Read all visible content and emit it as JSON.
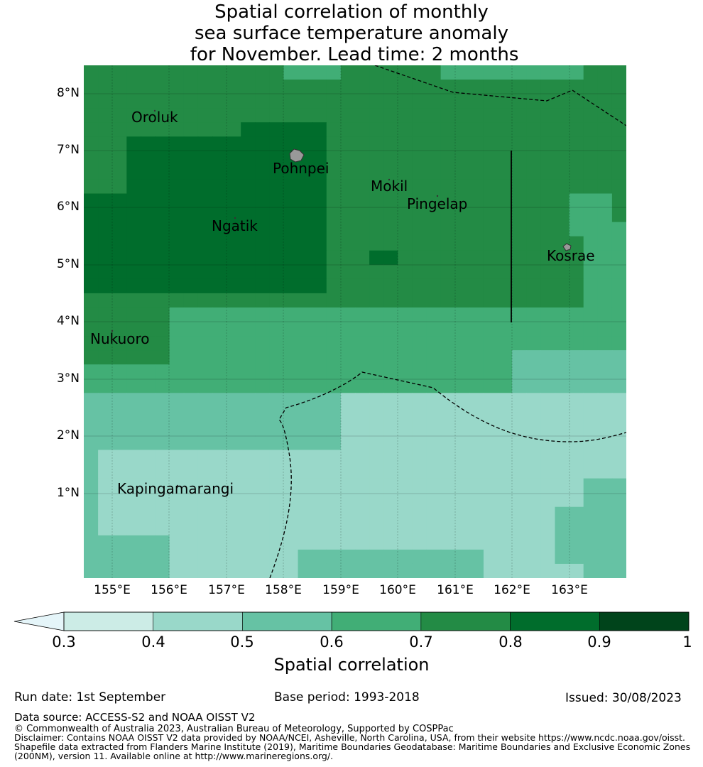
{
  "title": {
    "line1": "Spatial correlation of monthly",
    "line2": "sea surface temperature anomaly",
    "line3": " for November. Lead time: 2 months"
  },
  "map": {
    "lat_ticks": [
      "8°N",
      "7°N",
      "6°N",
      "5°N",
      "4°N",
      "3°N",
      "2°N",
      "1°N"
    ],
    "lon_ticks": [
      "155°E",
      "156°E",
      "157°E",
      "158°E",
      "159°E",
      "160°E",
      "161°E",
      "162°E",
      "163°E"
    ],
    "islands": [
      "Oroluk",
      "Pohnpei",
      "Mokil",
      "Pingelap",
      "Ngatik",
      "Kosrae",
      "Nukuoro",
      "Kapingamarangi"
    ],
    "land_color": "#999999",
    "class_colors": [
      "#99d8c9",
      "#66c2a4",
      "#41ae76",
      "#238b45",
      "#006d2c"
    ]
  },
  "colorbar": {
    "label": "Spatial correlation",
    "ticks": [
      "0.3",
      "0.4",
      "0.5",
      "0.6",
      "0.7",
      "0.8",
      "0.9",
      "1"
    ],
    "colors": [
      "#ccece6",
      "#99d8c9",
      "#66c2a4",
      "#41ae76",
      "#238b45",
      "#006d2c",
      "#00441b"
    ],
    "under_color": "#e5f5f9"
  },
  "footer": {
    "run_date": "Run date: 1st September",
    "base_period": "Base period: 1993-2018",
    "issued": "Issued: 30/08/2023",
    "data_source": "Data source: ACCESS-S2 and NOAA OISST V2",
    "copyright": "© Commonwealth of Australia 2023, Australian Bureau of Meteorology, Supported by COSPPac",
    "disclaimer1": "Disclaimer: Contains NOAA OISST V2 data provided by NOAA/NCEI, Asheville, North Carolina, USA, from their website https://www.ncdc.noaa.gov/oisst.",
    "disclaimer2": "Shapefile data extracted from Flanders Marine Institute (2019), Maritime Boundaries Geodatabase: Maritime Boundaries and Exclusive Economic Zones",
    "disclaimer3": "(200NM), version 11. Available online at http://www.marineregions.org/."
  }
}
